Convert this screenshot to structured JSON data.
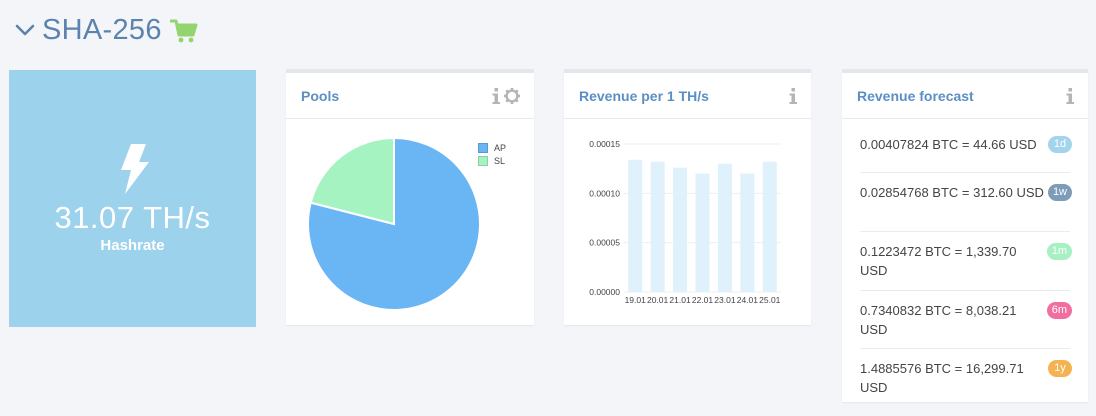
{
  "header": {
    "title": "SHA-256"
  },
  "hashrate": {
    "value": "31.07 TH/s",
    "label": "Hashrate"
  },
  "pools": {
    "title": "Pools",
    "legend": [
      {
        "name": "AP",
        "color": "#6ab6f5"
      },
      {
        "name": "SL",
        "color": "#a6f3c2"
      }
    ]
  },
  "revenue": {
    "title": "Revenue per 1 TH/s"
  },
  "forecast": {
    "title": "Revenue forecast",
    "rows": [
      {
        "text": "0.00407824 BTC = 44.66 USD",
        "badge": "1d",
        "color": "#a3d4ed"
      },
      {
        "text": "0.02854768 BTC = 312.60 USD",
        "badge": "1w",
        "color": "#7d9cb7"
      },
      {
        "text": "0.1223472 BTC = 1,339.70 USD",
        "badge": "1m",
        "color": "#a6f0c3"
      },
      {
        "text": "0.7340832 BTC = 8,038.21 USD",
        "badge": "6m",
        "color": "#f06f9f"
      },
      {
        "text": "1.4885576 BTC = 16,299.71 USD",
        "badge": "1y",
        "color": "#f4b251"
      }
    ]
  },
  "chart_data": [
    {
      "type": "pie",
      "series": [
        {
          "name": "AP",
          "values": [
            0.79
          ]
        },
        {
          "name": "SL",
          "values": [
            0.21
          ]
        }
      ],
      "colors": [
        "#6ab6f5",
        "#a6f3c2"
      ]
    },
    {
      "type": "bar",
      "categories": [
        "19.01",
        "20.01",
        "21.01",
        "22.01",
        "23.01",
        "24.01",
        "25.01"
      ],
      "values": [
        0.000134,
        0.000132,
        0.000126,
        0.00012,
        0.00013,
        0.00012,
        0.000132
      ],
      "yticks": [
        "0.00000",
        "0.00005",
        "0.00010",
        "0.00015"
      ],
      "ylim": [
        0,
        0.00015
      ],
      "color": "#dff1fb",
      "grid": true
    }
  ]
}
